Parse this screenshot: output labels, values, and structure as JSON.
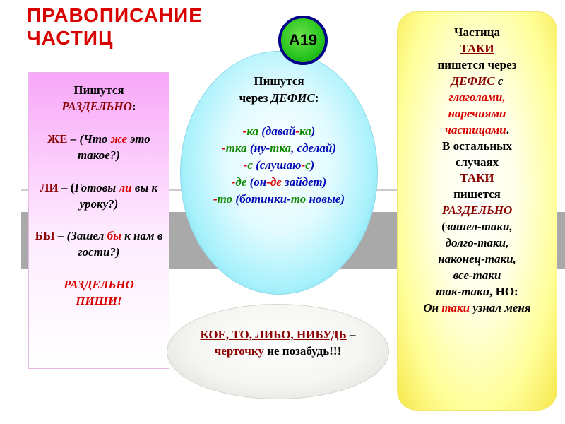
{
  "title": {
    "line1": "ПРАВОПИСАНИЕ",
    "line2": "ЧАСТИЦ",
    "color": "#d90000"
  },
  "badge": {
    "text": "А19",
    "bg": "#28c41e",
    "border": "#00008b"
  },
  "colors": {
    "accent_red": "#d90000",
    "darkred": "#8b0000",
    "green": "#108a00",
    "blue": "#0008b5",
    "black": "#000000"
  },
  "pink": {
    "line1": "Пишутся",
    "line2": "РАЗДЕЛЬНО",
    "zhe": {
      "head": "ЖЕ",
      "dash": " – ",
      "open": "(Что ",
      "mid": "же",
      "rest1": " это такое?)"
    },
    "li": {
      "head": "ЛИ",
      "dash": " – (",
      "open": "Готовы ",
      "mid": "ли",
      "rest": " вы к уроку?)"
    },
    "by": {
      "head": "БЫ",
      "dash": " – ",
      "open": "(Зашел ",
      "mid": "бы",
      "rest": " к нам в гости?)"
    },
    "footer1": "РАЗДЕЛЬНО",
    "footer2": "ПИШИ!"
  },
  "cyan": {
    "line1": "Пишутся",
    "line2a": "через ",
    "line2b": "ДЕФИС",
    "line2c": ":",
    "ka": {
      "dash1": "-",
      "p": "ка",
      "sp": " (давай",
      "dash2": "-",
      "s": "ка",
      "close": ")"
    },
    "tka": {
      "dash1": "-",
      "p": "тка",
      "sp": " (ну-",
      "s": "тка",
      "rest": ", сделай)"
    },
    "s": {
      "dash1": "-",
      "p": "с",
      "sp": " (слушаю",
      "dash2": "-",
      "s2": "с",
      "close": ")"
    },
    "de": {
      "dash1": "-",
      "p": "де",
      "sp": " (он",
      "dash2": "-",
      "s": "де",
      "rest": " зайдет)"
    },
    "to": {
      "dash1": "-",
      "p": "то",
      "sp": " (ботинки-",
      "s": "то",
      "rest": " новые)"
    }
  },
  "bottom": {
    "a": "КОЕ, ТО, ЛИБО, НИБУДЬ",
    "b": " –",
    "c": "черточку",
    "d": " не позабудь!!!"
  },
  "yellow": {
    "l1": "Частица",
    "l2": "ТАКИ",
    "l3": "пишется через",
    "l4": "ДЕФИС",
    "l4b": "  с ",
    "l5": "глаголами,",
    "l6": "наречиями",
    "l7": "частицами",
    "l7b": ".",
    "l8a": "В ",
    "l8b": "остальных ",
    "l9": "случаях",
    "l10": "ТАКИ",
    "l11": "пишется",
    "l12": "РАЗДЕЛЬНО",
    "l13": "(",
    "l13b": "зашел-таки,",
    "l14": "долго-таки,",
    "l15": "наконец-таки,",
    "l16": "все-таки",
    "l17a": "так-таки",
    "l17b": ", НО:",
    "l18a": "Он ",
    "l18b": "таки",
    "l18c": " узнал меня"
  }
}
